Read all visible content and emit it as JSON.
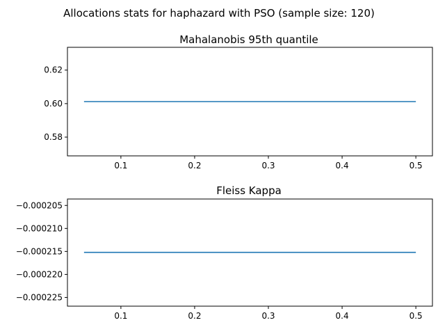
{
  "figure": {
    "suptitle": "Allocations stats for haphazard with PSO (sample size: 120)"
  },
  "chart_data": [
    {
      "type": "line",
      "title": "Mahalanobis 95th quantile",
      "xlabel": "",
      "ylabel": "",
      "x": [
        0.05,
        0.1,
        0.2,
        0.3,
        0.4,
        0.5
      ],
      "series": [
        {
          "name": "Mahalanobis 95th quantile",
          "values": [
            0.6012,
            0.6012,
            0.6012,
            0.6012,
            0.6012,
            0.6012
          ],
          "color": "#1f77b4"
        }
      ],
      "xlim": [
        0.0275,
        0.5225
      ],
      "ylim": [
        0.5688,
        0.6336
      ],
      "xticks": [
        0.1,
        0.2,
        0.3,
        0.4,
        0.5
      ],
      "xtick_labels": [
        "0.1",
        "0.2",
        "0.3",
        "0.4",
        "0.5"
      ],
      "yticks": [
        0.58,
        0.6,
        0.62
      ],
      "ytick_labels": [
        "0.58",
        "0.60",
        "0.62"
      ],
      "grid": false
    },
    {
      "type": "line",
      "title": "Fleiss Kappa",
      "xlabel": "",
      "ylabel": "",
      "x": [
        0.05,
        0.1,
        0.2,
        0.3,
        0.4,
        0.5
      ],
      "series": [
        {
          "name": "Fleiss Kappa",
          "values": [
            -0.0002152,
            -0.0002152,
            -0.0002152,
            -0.0002152,
            -0.0002152,
            -0.0002152
          ],
          "color": "#1f77b4"
        }
      ],
      "xlim": [
        0.0275,
        0.5225
      ],
      "ylim": [
        -0.0002269,
        -0.0002036
      ],
      "xticks": [
        0.1,
        0.2,
        0.3,
        0.4,
        0.5
      ],
      "xtick_labels": [
        "0.1",
        "0.2",
        "0.3",
        "0.4",
        "0.5"
      ],
      "yticks": [
        -0.000225,
        -0.00022,
        -0.000215,
        -0.00021,
        -0.000205
      ],
      "ytick_labels": [
        "−0.000225",
        "−0.000220",
        "−0.000215",
        "−0.000210",
        "−0.000205"
      ],
      "grid": false
    }
  ]
}
